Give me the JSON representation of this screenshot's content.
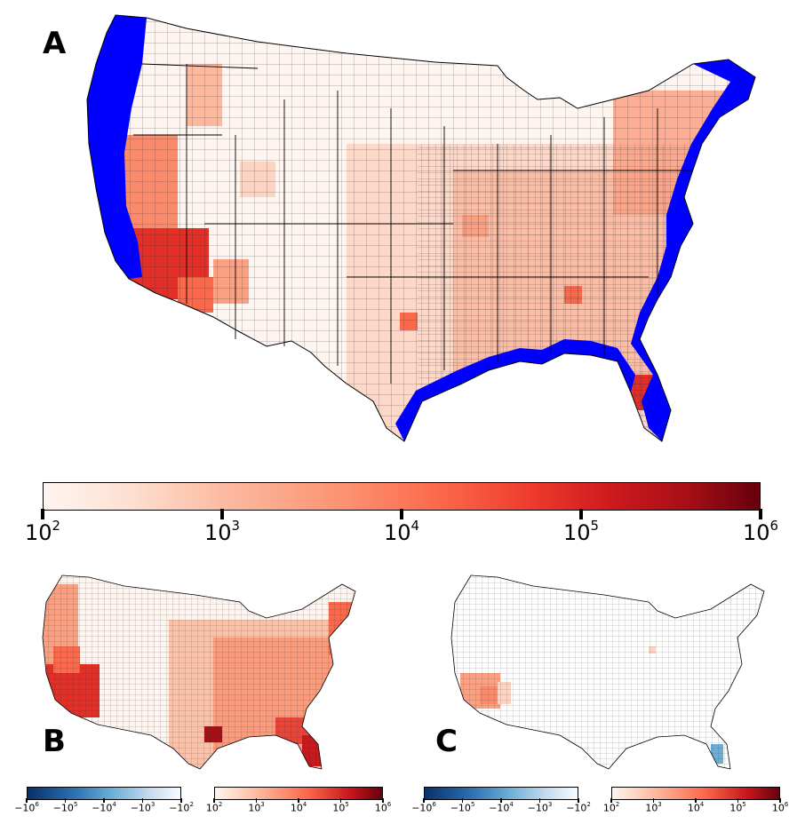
{
  "panels": {
    "a": {
      "letter": "A"
    },
    "b": {
      "letter": "B"
    },
    "c": {
      "letter": "C"
    }
  },
  "colors": {
    "coast_highlight": "#0000ff",
    "state_border": "#000000",
    "reds": [
      "#fff5f0",
      "#fdd4c2",
      "#fca082",
      "#fb694a",
      "#e32f27",
      "#b11218",
      "#67000d"
    ],
    "blues": [
      "#08306b",
      "#2a6fb0",
      "#6aaed6",
      "#c6dbef",
      "#f7fbff"
    ]
  },
  "colorbars": {
    "main": {
      "scale": "log",
      "range": [
        100,
        1000000
      ],
      "ticks": [
        {
          "base": "10",
          "exp": "2"
        },
        {
          "base": "10",
          "exp": "3"
        },
        {
          "base": "10",
          "exp": "4"
        },
        {
          "base": "10",
          "exp": "5"
        },
        {
          "base": "10",
          "exp": "6"
        }
      ]
    },
    "negative": {
      "scale": "symlog",
      "range": [
        -1000000,
        -100
      ],
      "ticks": [
        {
          "base": "−10",
          "exp": "6"
        },
        {
          "base": "−10",
          "exp": "5"
        },
        {
          "base": "−10",
          "exp": "4"
        },
        {
          "base": "−10",
          "exp": "3"
        },
        {
          "base": "−10",
          "exp": "2"
        }
      ]
    },
    "positive": {
      "scale": "log",
      "range": [
        100,
        1000000
      ],
      "ticks": [
        {
          "base": "10",
          "exp": "2"
        },
        {
          "base": "10",
          "exp": "3"
        },
        {
          "base": "10",
          "exp": "4"
        },
        {
          "base": "10",
          "exp": "5"
        },
        {
          "base": "10",
          "exp": "6"
        }
      ]
    }
  }
}
